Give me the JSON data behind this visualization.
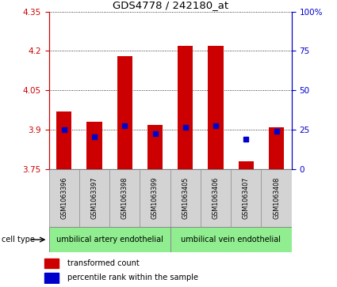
{
  "title": "GDS4778 / 242180_at",
  "samples": [
    "GSM1063396",
    "GSM1063397",
    "GSM1063398",
    "GSM1063399",
    "GSM1063405",
    "GSM1063406",
    "GSM1063407",
    "GSM1063408"
  ],
  "bar_tops": [
    3.97,
    3.93,
    4.18,
    3.92,
    4.22,
    4.22,
    3.78,
    3.91
  ],
  "bar_bottom": 3.75,
  "percentile_left_values": [
    3.9,
    3.875,
    3.915,
    3.885,
    3.91,
    3.915,
    3.865,
    3.895
  ],
  "ylim_left": [
    3.75,
    4.35
  ],
  "ylim_right": [
    0,
    100
  ],
  "yticks_left": [
    3.75,
    3.9,
    4.05,
    4.2,
    4.35
  ],
  "yticks_right": [
    0,
    25,
    50,
    75,
    100
  ],
  "ytick_labels_left": [
    "3.75",
    "3.9",
    "4.05",
    "4.2",
    "4.35"
  ],
  "ytick_labels_right": [
    "0",
    "25",
    "50",
    "75",
    "100%"
  ],
  "cell_types": [
    {
      "label": "umbilical artery endothelial"
    },
    {
      "label": "umbilical vein endothelial"
    }
  ],
  "bar_color": "#cc0000",
  "dot_color": "#0000cc",
  "background_plot": "#ffffff",
  "background_label": "#d3d3d3",
  "background_cell": "#90ee90",
  "left_axis_color": "#cc0000",
  "right_axis_color": "#0000cc",
  "legend_bar_label": "transformed count",
  "legend_dot_label": "percentile rank within the sample",
  "cell_type_label": "cell type"
}
